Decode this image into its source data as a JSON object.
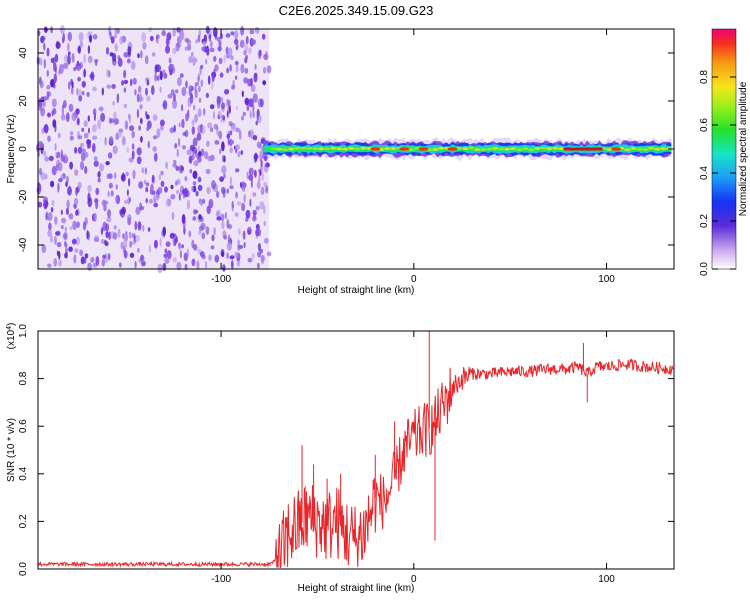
{
  "title": "C2E6.2025.349.15.09.G23",
  "chart_data": [
    {
      "type": "heatmap",
      "name": "spectrogram",
      "xlabel": "Height of straight line (km)",
      "ylabel": "Frequency (Hz)",
      "xlim": [
        -195,
        135
      ],
      "ylim": [
        -50,
        50
      ],
      "xticks": [
        -100,
        0,
        100
      ],
      "yticks": [
        -40,
        -20,
        0,
        20,
        40
      ],
      "colorbar": {
        "label": "Normalized spectral amplitude",
        "range": [
          0,
          1
        ],
        "ticks": [
          0.0,
          0.2,
          0.4,
          0.6,
          0.8
        ]
      },
      "noise_region_x": [
        -195,
        -75
      ],
      "signal_band_center_hz": 0,
      "signal_band_width_hz": 6,
      "peak_amplitude_x": [
        -20,
        -5,
        5,
        20,
        80,
        90,
        105
      ]
    },
    {
      "type": "line",
      "name": "snr",
      "xlabel": "Height of straight line (km)",
      "ylabel": "SNR (10 * v/v)",
      "scale_label": "(x10",
      "scale_exponent": "4",
      "scale_close": ")",
      "xlim": [
        -195,
        135
      ],
      "ylim": [
        0,
        1.0
      ],
      "xticks": [
        -100,
        0,
        100
      ],
      "yticks": [
        0.0,
        0.2,
        0.4,
        0.6,
        0.8,
        1.0
      ],
      "color": "#e8262a",
      "series": [
        {
          "name": "SNR",
          "x": [
            -195,
            -150,
            -100,
            -75,
            -70,
            -65,
            -60,
            -55,
            -50,
            -45,
            -40,
            -35,
            -30,
            -25,
            -20,
            -15,
            -10,
            -5,
            0,
            5,
            10,
            15,
            20,
            25,
            30,
            40,
            50,
            60,
            70,
            80,
            85,
            90,
            95,
            100,
            110,
            120,
            135
          ],
          "y": [
            0.02,
            0.02,
            0.02,
            0.02,
            0.04,
            0.15,
            0.18,
            0.22,
            0.2,
            0.18,
            0.2,
            0.15,
            0.12,
            0.17,
            0.3,
            0.28,
            0.38,
            0.5,
            0.55,
            0.58,
            0.6,
            0.68,
            0.76,
            0.8,
            0.82,
            0.82,
            0.83,
            0.83,
            0.84,
            0.84,
            0.85,
            0.82,
            0.85,
            0.85,
            0.86,
            0.85,
            0.84
          ]
        }
      ],
      "spikes": [
        {
          "x": -58,
          "y": 0.52
        },
        {
          "x": -52,
          "y": 0.44
        },
        {
          "x": -45,
          "y": 0.38
        },
        {
          "x": -38,
          "y": 0.4
        },
        {
          "x": -20,
          "y": 0.48
        },
        {
          "x": -10,
          "y": 0.62
        },
        {
          "x": 8,
          "y": 1.02
        },
        {
          "x": 11,
          "y": 0.12
        },
        {
          "x": 88,
          "y": 0.95
        },
        {
          "x": 90,
          "y": 0.7
        }
      ]
    }
  ]
}
